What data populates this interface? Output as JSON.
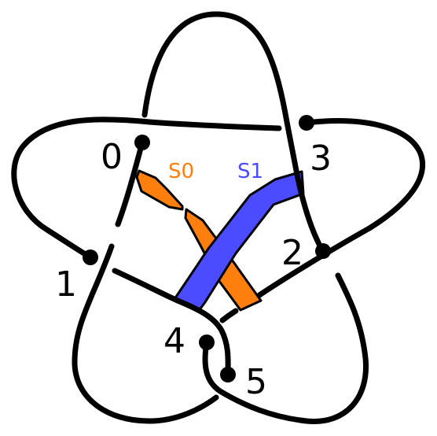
{
  "colors": {
    "strand": "#000000",
    "band_s0": "#ff7f0e",
    "band_s1": "#4b4bff",
    "background": "#ffffff"
  },
  "nodes": [
    "0",
    "1",
    "2",
    "3",
    "4",
    "5"
  ],
  "bands": [
    {
      "label": "S0",
      "color": "#ff7f0e"
    },
    {
      "label": "S1",
      "color": "#4b4bff"
    }
  ]
}
